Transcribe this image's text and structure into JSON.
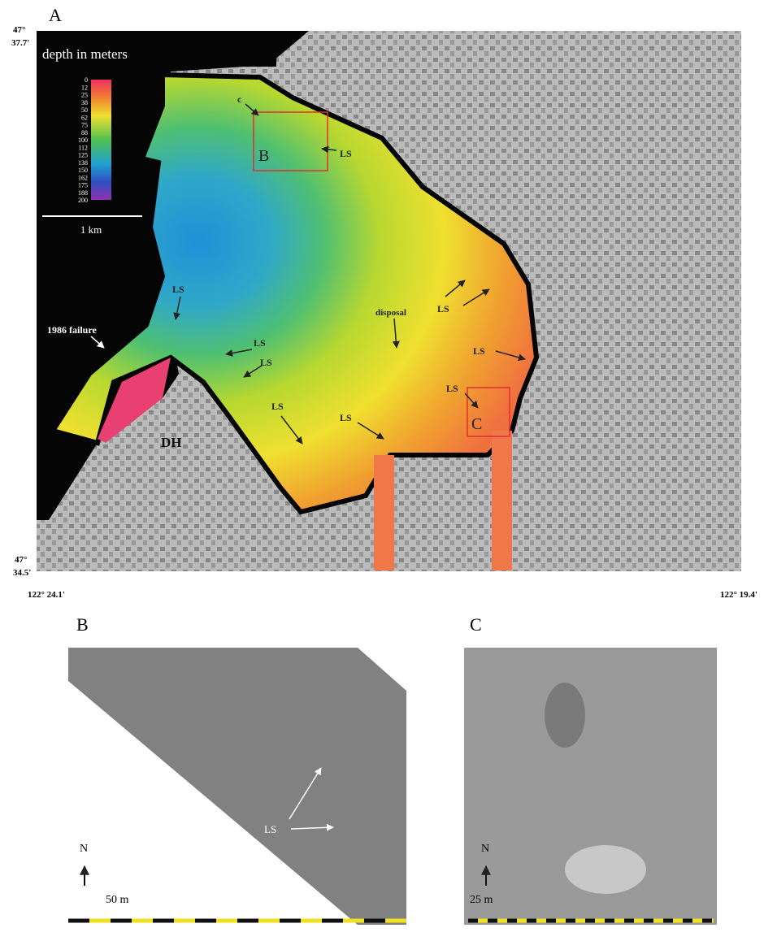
{
  "panel_a": {
    "label": "A",
    "lat_top": [
      "47°",
      "37.7'"
    ],
    "lat_bottom": [
      "47°",
      "34.5'"
    ],
    "lon_left": "122° 24.1'",
    "lon_right": "122° 19.4'",
    "legend": {
      "title": "depth in meters",
      "ticks": [
        "0",
        "12",
        "25",
        "38",
        "50",
        "62",
        "75",
        "88",
        "100",
        "112",
        "125",
        "138",
        "150",
        "162",
        "175",
        "188",
        "200"
      ],
      "scale": "1 km"
    },
    "annotations": [
      "c",
      "B",
      "LS",
      "LS",
      "1986 failure",
      "LS",
      "LS",
      "disposal",
      "LS",
      "LS",
      "LS",
      "C",
      "LS",
      "LS",
      "DH"
    ]
  },
  "panel_b": {
    "label": "B",
    "north": "N",
    "scale": "50 m",
    "annotation": "LS"
  },
  "panel_c": {
    "label": "C",
    "north": "N",
    "scale": "25 m"
  }
}
